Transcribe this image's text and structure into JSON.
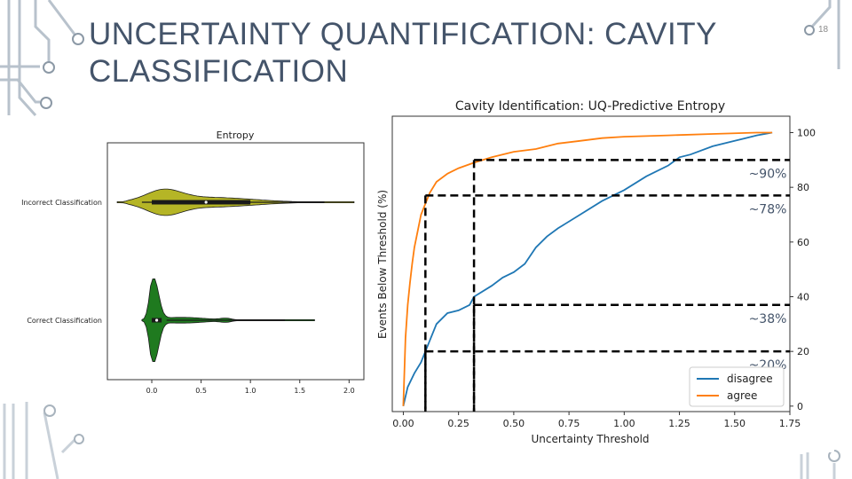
{
  "slide": {
    "title": "UNCERTAINTY QUANTIFICATION: CAVITY CLASSIFICATION",
    "number": "18",
    "accent_color": "#44546a"
  },
  "chart_data": [
    {
      "type": "violin",
      "title": "Entropy",
      "orientation": "horizontal",
      "categories": [
        "Incorrect Classification",
        "Correct Classification"
      ],
      "colors": [
        "#b5b526",
        "#1f7a1f"
      ],
      "xticks": [
        "0.0",
        "0.5",
        "1.0",
        "1.5",
        "2.0"
      ],
      "xlim": [
        -0.45,
        2.15
      ],
      "series": [
        {
          "values_range": [
            -0.35,
            2.05
          ],
          "q1": 0.0,
          "median": 0.55,
          "q3": 1.0
        },
        {
          "values_range": [
            -0.1,
            1.65
          ],
          "q1": 0.0,
          "median": 0.05,
          "q3": 0.1
        }
      ]
    },
    {
      "type": "line",
      "title": "Cavity Identification: UQ-Predictive Entropy",
      "xlabel": "Uncertainty Threshold",
      "ylabel": "Events Below Threshold (%)",
      "xlim": [
        -0.05,
        1.75
      ],
      "ylim": [
        -2,
        106
      ],
      "xticks": [
        "0.00",
        "0.25",
        "0.50",
        "0.75",
        "1.00",
        "1.25",
        "1.50",
        "1.75"
      ],
      "yticks": [
        "0",
        "20",
        "40",
        "60",
        "80",
        "100"
      ],
      "legend_position": "lower-right",
      "series": [
        {
          "name": "disagree",
          "color": "#1f77b4",
          "x": [
            0.0,
            0.02,
            0.05,
            0.08,
            0.1,
            0.12,
            0.15,
            0.2,
            0.25,
            0.3,
            0.32,
            0.4,
            0.45,
            0.5,
            0.55,
            0.6,
            0.65,
            0.7,
            0.8,
            0.9,
            1.0,
            1.1,
            1.2,
            1.25,
            1.3,
            1.4,
            1.5,
            1.55,
            1.6,
            1.67
          ],
          "y": [
            0,
            7,
            12,
            16,
            20,
            24,
            30,
            34,
            35,
            37,
            40,
            44,
            47,
            49,
            52,
            58,
            62,
            65,
            70,
            75,
            79,
            84,
            88,
            91,
            92,
            95,
            97,
            98,
            99,
            100
          ]
        },
        {
          "name": "agree",
          "color": "#ff7f0e",
          "x": [
            0.0,
            0.01,
            0.02,
            0.03,
            0.04,
            0.05,
            0.06,
            0.07,
            0.08,
            0.1,
            0.12,
            0.15,
            0.2,
            0.25,
            0.32,
            0.4,
            0.5,
            0.6,
            0.7,
            0.8,
            0.9,
            1.0,
            1.2,
            1.4,
            1.6,
            1.67
          ],
          "y": [
            0,
            25,
            37,
            45,
            52,
            58,
            62,
            66,
            70,
            74,
            78,
            82,
            85,
            87,
            89,
            91,
            93,
            94,
            96,
            97,
            98,
            98.5,
            99,
            99.5,
            100,
            100
          ]
        }
      ],
      "annotations": [
        {
          "label": "~90%",
          "x": 0.32,
          "y": 90
        },
        {
          "label": "~78%",
          "x": 0.1,
          "y": 77
        },
        {
          "label": "~38%",
          "x": 0.32,
          "y": 37
        },
        {
          "label": "~20%",
          "x": 0.1,
          "y": 20
        }
      ]
    }
  ]
}
